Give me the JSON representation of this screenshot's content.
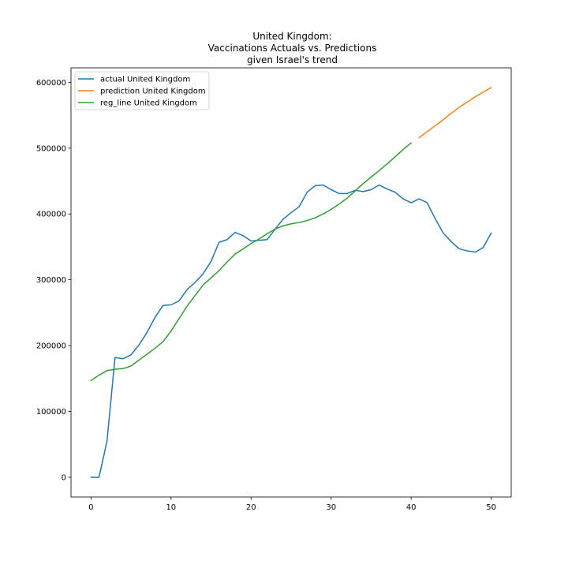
{
  "chart_data": {
    "type": "line",
    "title_lines": [
      "United Kingdom:",
      "Vaccinations Actuals vs. Predictions",
      "given Israel's trend"
    ],
    "xlabel": "",
    "ylabel": "",
    "xlim": [
      -2.5,
      52.5
    ],
    "ylim": [
      -30000,
      622000
    ],
    "x_ticks": [
      0,
      10,
      20,
      30,
      40,
      50
    ],
    "y_ticks": [
      0,
      100000,
      200000,
      300000,
      400000,
      500000,
      600000
    ],
    "grid": false,
    "legend_placement": "upper left",
    "series": [
      {
        "name": "actual United Kingdom",
        "color": "#1f77b4",
        "x": [
          0,
          1,
          2,
          3,
          4,
          5,
          6,
          7,
          8,
          9,
          10,
          11,
          12,
          13,
          14,
          15,
          16,
          17,
          18,
          19,
          20,
          21,
          22,
          23,
          24,
          25,
          26,
          27,
          28,
          29,
          30,
          31,
          32,
          33,
          34,
          35,
          36,
          37,
          38,
          39,
          40,
          41,
          42,
          43,
          44,
          45,
          46,
          47,
          48,
          49,
          50
        ],
        "y": [
          0,
          0,
          55000,
          182000,
          180000,
          186000,
          201000,
          220000,
          243000,
          261000,
          262000,
          268000,
          285000,
          296000,
          309000,
          328000,
          357000,
          361000,
          372000,
          367000,
          359000,
          360000,
          361000,
          377000,
          392000,
          402000,
          411000,
          433000,
          443000,
          444000,
          437000,
          431000,
          431000,
          436000,
          434000,
          437000,
          444000,
          438000,
          433000,
          423000,
          417000,
          423000,
          417000,
          393000,
          371000,
          358000,
          347000,
          344000,
          342000,
          349000,
          371000
        ]
      },
      {
        "name": "prediction United Kingdom",
        "color": "#ff7f0e",
        "x": [
          41,
          42,
          43,
          44,
          45,
          46,
          47,
          48,
          49,
          50
        ],
        "y": [
          516000,
          525000,
          534000,
          543000,
          553000,
          562000,
          570000,
          578000,
          585000,
          592000
        ]
      },
      {
        "name": "reg_line United Kingdom",
        "color": "#2ca02c",
        "x": [
          0,
          1,
          2,
          3,
          4,
          5,
          6,
          7,
          8,
          9,
          10,
          11,
          12,
          13,
          14,
          15,
          16,
          17,
          18,
          19,
          20,
          21,
          22,
          23,
          24,
          25,
          26,
          27,
          28,
          29,
          30,
          31,
          32,
          33,
          34,
          35,
          36,
          37,
          38,
          39,
          40
        ],
        "y": [
          147000,
          155000,
          162000,
          164000,
          165000,
          169000,
          178000,
          187000,
          196000,
          206000,
          222000,
          241000,
          260000,
          276000,
          292000,
          303000,
          314000,
          327000,
          339000,
          347000,
          355000,
          362000,
          370000,
          377000,
          382000,
          385000,
          387000,
          390000,
          394000,
          400000,
          407000,
          415000,
          424000,
          435000,
          446000,
          456000,
          466000,
          476000,
          487000,
          498000,
          508000
        ]
      }
    ]
  }
}
